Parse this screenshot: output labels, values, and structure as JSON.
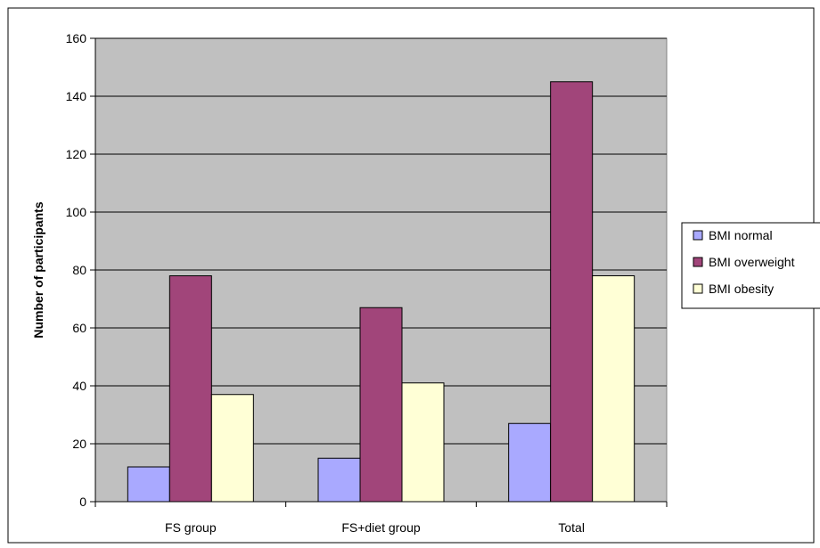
{
  "chart_data": {
    "type": "bar",
    "title": "",
    "xlabel": "",
    "ylabel": "Number of participants",
    "categories": [
      "FS group",
      "FS+diet group",
      "Total"
    ],
    "series": [
      {
        "name": "BMI normal",
        "values": [
          12,
          15,
          27
        ],
        "color": "#a9a9ff"
      },
      {
        "name": "BMI overweight",
        "values": [
          78,
          67,
          145
        ],
        "color": "#a1457a"
      },
      {
        "name": "BMI obesity",
        "values": [
          37,
          41,
          78
        ],
        "color": "#ffffd6"
      }
    ],
    "ylim": [
      0,
      160
    ],
    "yticks": [
      0,
      20,
      40,
      60,
      80,
      100,
      120,
      140,
      160
    ],
    "grid": true,
    "plot_background": "#c0c0c0",
    "legend_position": "right"
  }
}
